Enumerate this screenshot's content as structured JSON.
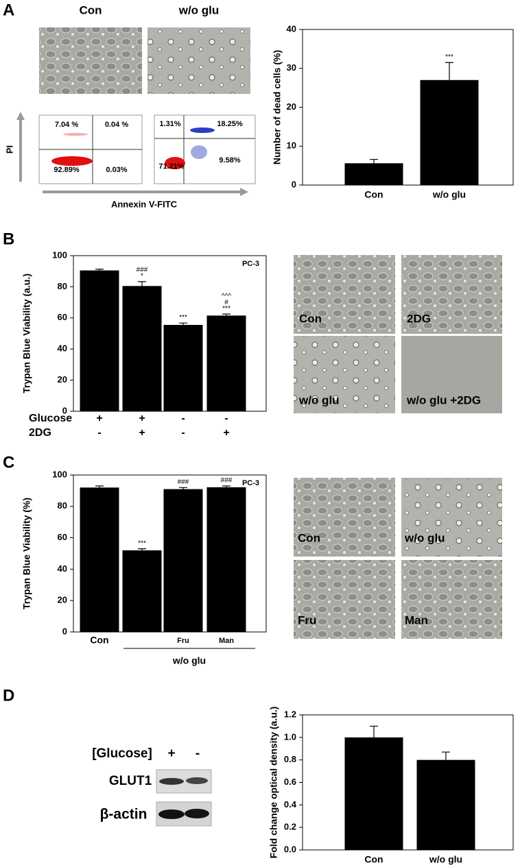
{
  "panel_labels": [
    "A",
    "B",
    "C",
    "D"
  ],
  "panel_a": {
    "image_labels": [
      "Con",
      "w/o glu"
    ],
    "flow": {
      "y_label": "PI",
      "x_label": "Annexin V-FITC",
      "plots": [
        {
          "quadrants": [
            "7.04 %",
            "0.04 %",
            "92.89%",
            "0.03%"
          ]
        },
        {
          "quadrants": [
            "1.31%",
            "18.25%",
            "71.21%",
            "9.58%"
          ]
        }
      ]
    }
  },
  "panel_b": {
    "image_labels": [
      "Con",
      "2DG",
      "w/o glu",
      "w/o glu +2DG"
    ]
  },
  "panel_c": {
    "image_labels": [
      "Con",
      "w/o glu",
      "Fru",
      "Man"
    ]
  },
  "panel_d": {
    "blot": {
      "header": "[Glucose]",
      "lanes": [
        "+",
        "-"
      ],
      "rows": [
        "GLUT1",
        "β-actin"
      ]
    }
  },
  "chart_data": [
    {
      "type": "bar",
      "y_label": "Number of dead cells (%)",
      "categories": [
        "Con",
        "w/o glu"
      ],
      "values": [
        5.6,
        27
      ],
      "errors": [
        1.0,
        4.5
      ],
      "significance": [
        null,
        [
          "***"
        ]
      ],
      "color": "#000000",
      "ylim": [
        0,
        40
      ],
      "yticks": [
        0,
        10,
        20,
        30,
        40
      ]
    },
    {
      "type": "bar",
      "y_label": "Trypan Blue Viability (a.u.)",
      "chart_label": "PC-3",
      "categories": [
        null,
        null,
        null,
        null
      ],
      "values": [
        90.5,
        80.5,
        55.5,
        61.5
      ],
      "errors": [
        0.8,
        2.8,
        1.2,
        1.0
      ],
      "significance": [
        null,
        [
          "###",
          "*"
        ],
        [
          "***"
        ],
        [
          "^^^",
          "#",
          "***"
        ]
      ],
      "color": "#000000",
      "conditions": [
        {
          "name": "Glucose",
          "values": [
            "+",
            "+",
            "-",
            "-"
          ]
        },
        {
          "name": "2DG",
          "values": [
            "-",
            "+",
            "-",
            "+"
          ]
        }
      ],
      "ylim": [
        0,
        100
      ],
      "yticks": [
        0,
        20,
        40,
        60,
        80,
        100
      ]
    },
    {
      "type": "bar",
      "y_label": "Trypan Blue Viability (%)",
      "chart_label": "PC-3",
      "categories": [
        "Con",
        null,
        "Fru",
        "Man"
      ],
      "values": [
        92,
        52,
        91,
        92.2
      ],
      "errors": [
        1.0,
        1.0,
        1.0,
        0.8
      ],
      "significance": [
        null,
        [
          "***"
        ],
        [
          "###"
        ],
        [
          "###"
        ]
      ],
      "group_label": "w/o glu",
      "color": "#000000",
      "ylim": [
        0,
        100
      ],
      "yticks": [
        0,
        20,
        40,
        60,
        80,
        100
      ]
    },
    {
      "type": "bar",
      "y_label": "Fold change optical density (a.u.)",
      "categories": [
        "Con",
        "w/o glu"
      ],
      "values": [
        1.0,
        0.8
      ],
      "errors": [
        0.1,
        0.07
      ],
      "color": "#000000",
      "ylim": [
        0,
        1.2
      ],
      "yticks": [
        {
          "value": 0,
          "label": "0.0"
        },
        0.2,
        0.4,
        0.6,
        0.8,
        {
          "value": 1,
          "label": "1.0"
        },
        1.2
      ]
    }
  ]
}
